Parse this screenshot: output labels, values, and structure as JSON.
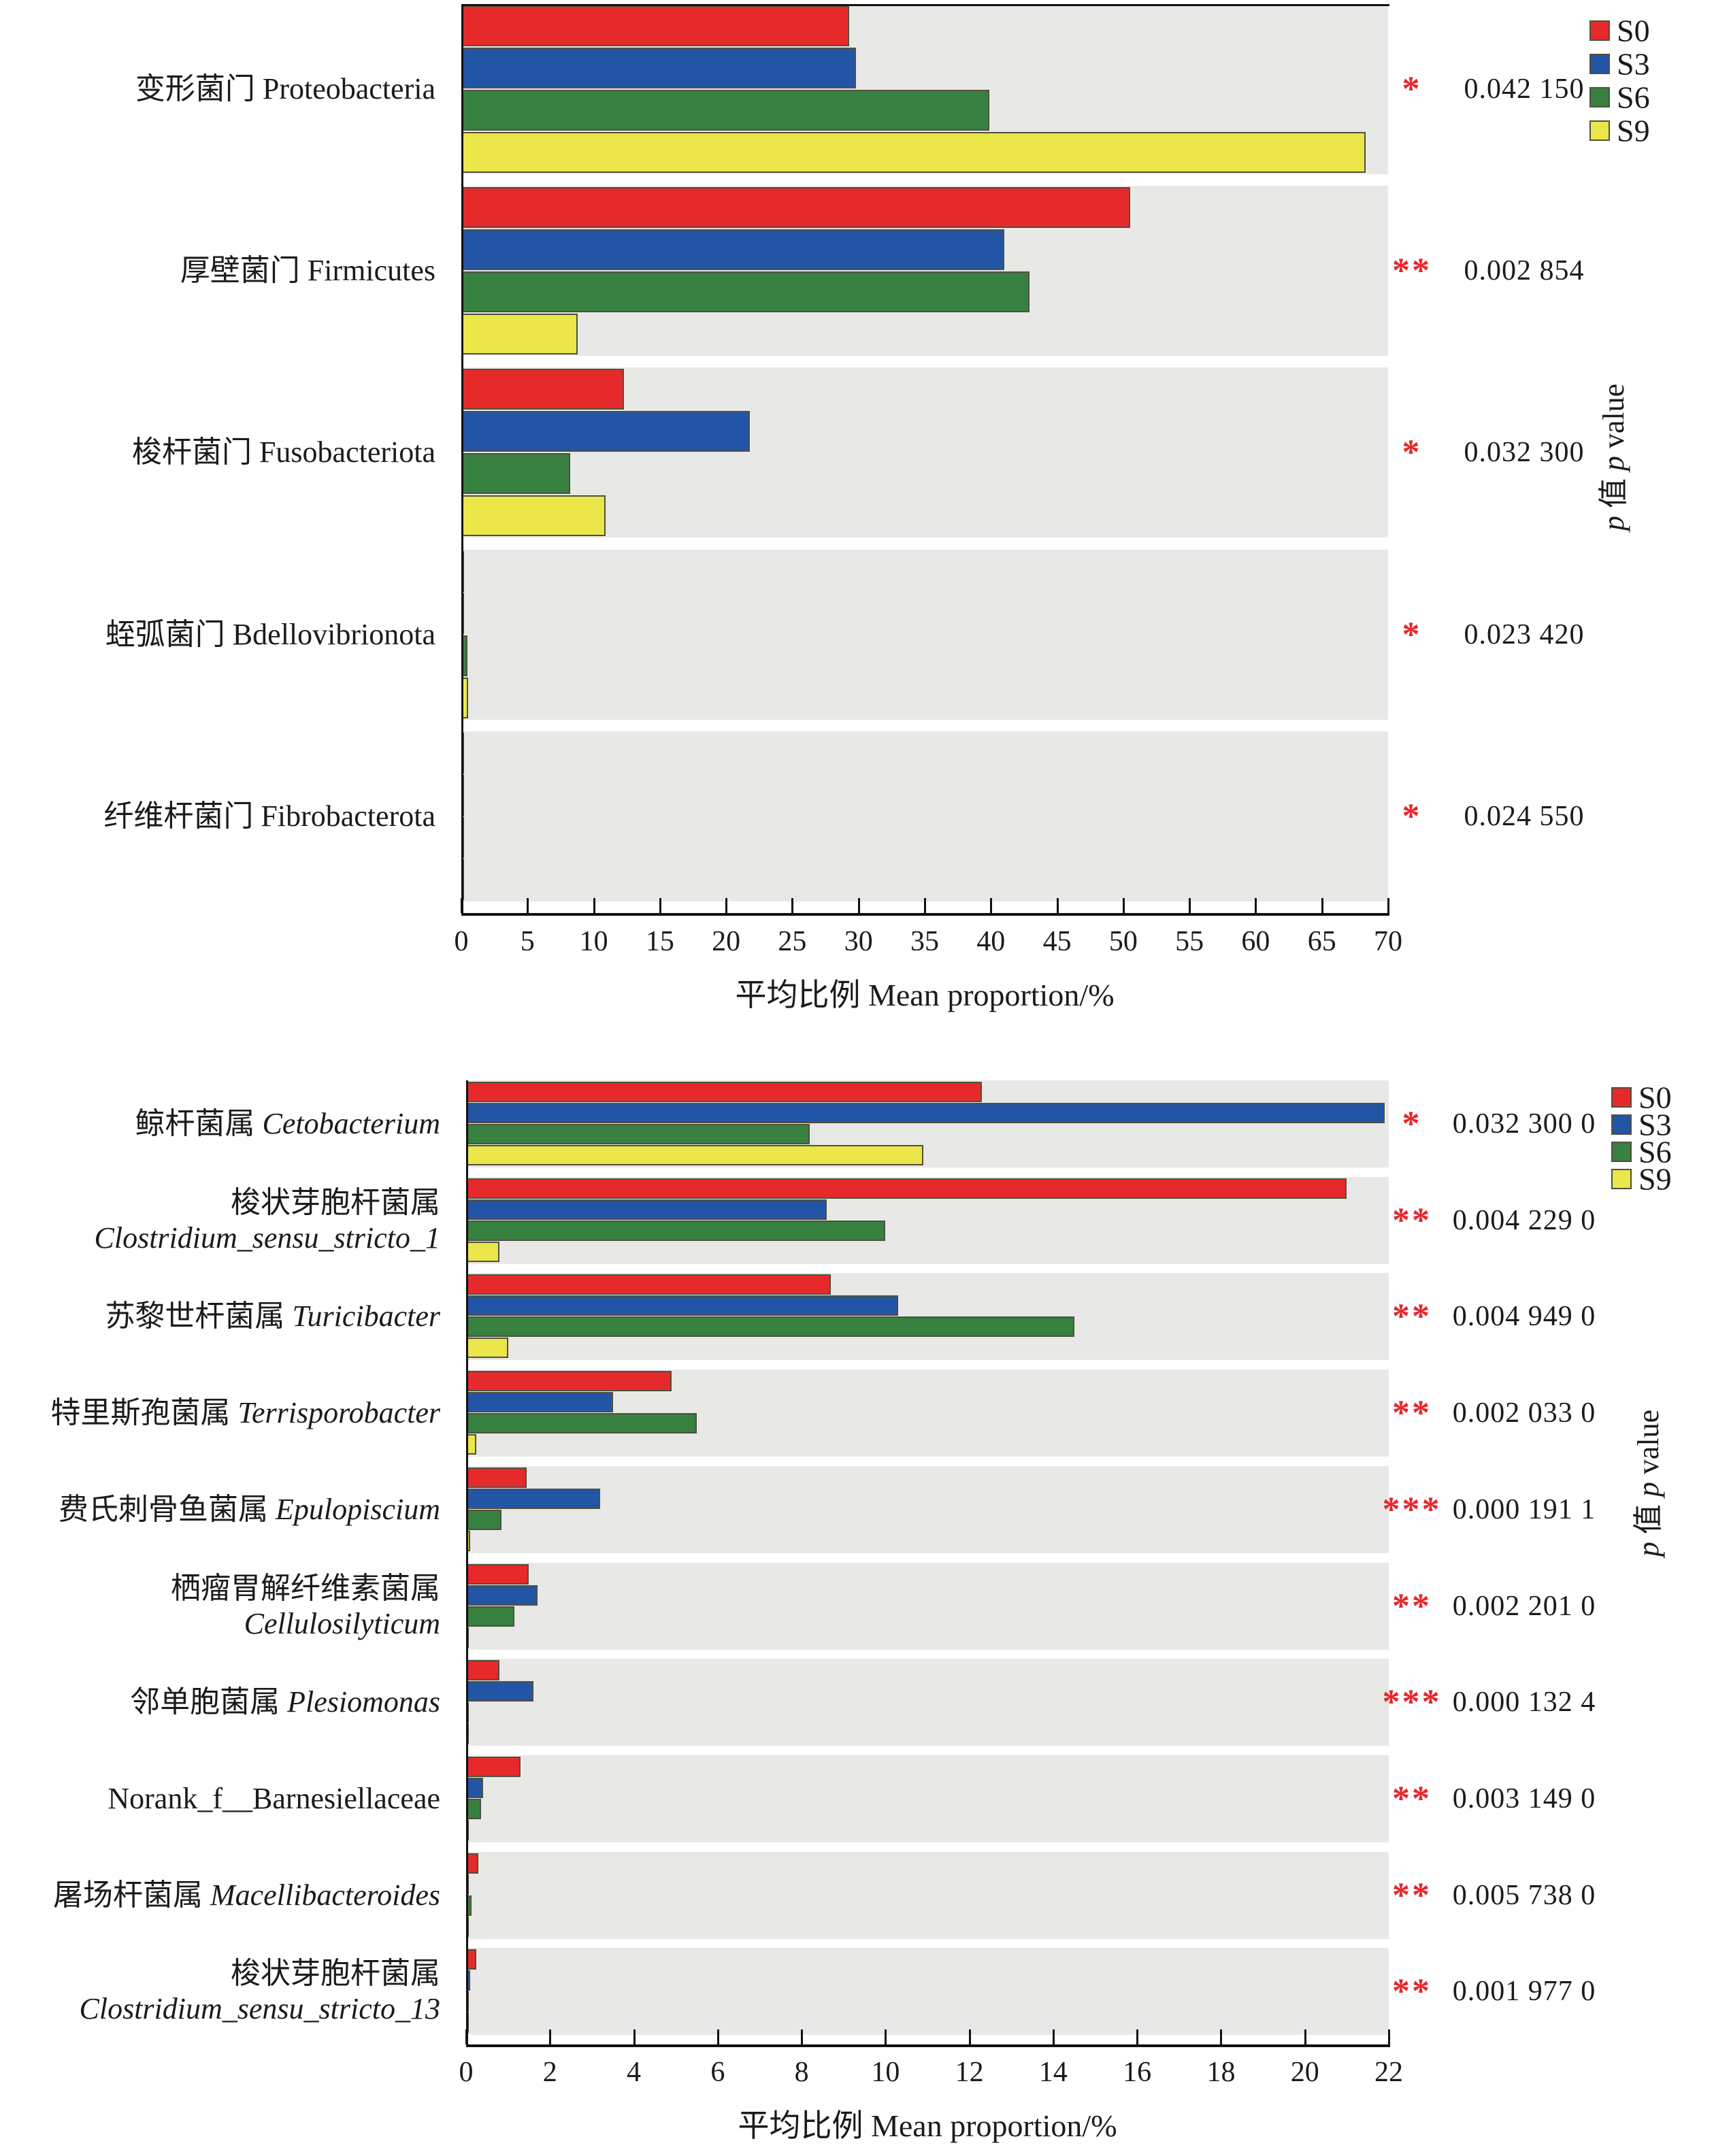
{
  "colors": {
    "S0": "#e62a2c",
    "S3": "#2355a7",
    "S6": "#38803f",
    "S9": "#ebe74b",
    "bar_border": "#50503f",
    "band_bg": "#e8e8e6",
    "star": "#e8262b",
    "text": "#1b1b1b"
  },
  "chart_data": [
    {
      "id": "phylum-chart",
      "type": "bar",
      "orientation": "horizontal-grouped",
      "series": [
        "S0",
        "S3",
        "S6",
        "S9"
      ],
      "legend": [
        "S0",
        "S3",
        "S6",
        "S9"
      ],
      "xlabel": "平均比例 Mean  proportion/%",
      "right_ylabel_segments": [
        {
          "t": "p",
          "i": true
        },
        {
          "t": " 值 ",
          "i": false
        },
        {
          "t": "p",
          "i": true
        },
        {
          "t": " value",
          "i": false
        }
      ],
      "xlim": [
        0,
        70
      ],
      "xticks": [
        0,
        5,
        10,
        15,
        20,
        25,
        30,
        35,
        40,
        45,
        50,
        55,
        60,
        65,
        70
      ],
      "grid": false,
      "categories": [
        {
          "lines": [
            [
              {
                "t": "变形菌门 Proteobacteria",
                "i": false
              }
            ]
          ],
          "values": [
            29.3,
            29.8,
            39.9,
            68.3
          ],
          "p": "0.042 150",
          "stars": "*"
        },
        {
          "lines": [
            [
              {
                "t": "厚壁菌门 Firmicutes",
                "i": false
              }
            ]
          ],
          "values": [
            50.5,
            41.0,
            42.9,
            8.8
          ],
          "p": "0.002 854",
          "stars": "**"
        },
        {
          "lines": [
            [
              {
                "t": "梭杆菌门 Fusobacteriota",
                "i": false
              }
            ]
          ],
          "values": [
            12.3,
            21.8,
            8.2,
            10.9
          ],
          "p": "0.032 300",
          "stars": "*"
        },
        {
          "lines": [
            [
              {
                "t": "蛭弧菌门 Bdellovibrionota",
                "i": false
              }
            ]
          ],
          "values": [
            0.05,
            0.1,
            0.45,
            0.5
          ],
          "p": "0.023 420",
          "stars": "*"
        },
        {
          "lines": [
            [
              {
                "t": "纤维杆菌门 Fibrobacterota",
                "i": false
              }
            ]
          ],
          "values": [
            0.07,
            0.03,
            0.02,
            0.02
          ],
          "p": "0.024 550",
          "stars": "*"
        }
      ]
    },
    {
      "id": "genus-chart",
      "type": "bar",
      "orientation": "horizontal-grouped",
      "series": [
        "S0",
        "S3",
        "S6",
        "S9"
      ],
      "legend": [
        "S0",
        "S3",
        "S6",
        "S9"
      ],
      "xlabel": "平均比例 Mean  proportion/%",
      "right_ylabel_segments": [
        {
          "t": "p",
          "i": true
        },
        {
          "t": " 值 ",
          "i": false
        },
        {
          "t": "p",
          "i": true
        },
        {
          "t": " value",
          "i": false
        }
      ],
      "xlim": [
        0,
        22
      ],
      "xticks": [
        0,
        2,
        4,
        6,
        8,
        10,
        12,
        14,
        16,
        18,
        20,
        22
      ],
      "grid": false,
      "categories": [
        {
          "lines": [
            [
              {
                "t": "鲸杆菌属 ",
                "i": false
              },
              {
                "t": "Cetobacterium",
                "i": true
              }
            ]
          ],
          "values": [
            12.3,
            21.9,
            8.2,
            10.9
          ],
          "p": "0.032 300 0",
          "stars": "*"
        },
        {
          "lines": [
            [
              {
                "t": "梭状芽胞杆菌属",
                "i": false
              }
            ],
            [
              {
                "t": "Clostridium_sensu_stricto_1",
                "i": true
              }
            ]
          ],
          "values": [
            21.0,
            8.6,
            10.0,
            0.8
          ],
          "p": "0.004 229 0",
          "stars": "**"
        },
        {
          "lines": [
            [
              {
                "t": "苏黎世杆菌属 ",
                "i": false
              },
              {
                "t": "Turicibacter",
                "i": true
              }
            ]
          ],
          "values": [
            8.7,
            10.3,
            14.5,
            1.0
          ],
          "p": "0.004 949 0",
          "stars": "**"
        },
        {
          "lines": [
            [
              {
                "t": "特里斯孢菌属 ",
                "i": false
              },
              {
                "t": "Terrisporobacter",
                "i": true
              }
            ]
          ],
          "values": [
            4.9,
            3.5,
            5.5,
            0.25
          ],
          "p": "0.002 033 0",
          "stars": "**"
        },
        {
          "lines": [
            [
              {
                "t": "费氏刺骨鱼菌属 ",
                "i": false
              },
              {
                "t": "Epulopiscium",
                "i": true
              }
            ]
          ],
          "values": [
            1.45,
            3.2,
            0.85,
            0.1
          ],
          "p": "0.000 191 1",
          "stars": "***"
        },
        {
          "lines": [
            [
              {
                "t": "栖瘤胃解纤维素菌属",
                "i": false
              }
            ],
            [
              {
                "t": "Cellulosilyticum",
                "i": true
              }
            ]
          ],
          "values": [
            1.5,
            1.7,
            1.15,
            0.04
          ],
          "p": "0.002 201 0",
          "stars": "**"
        },
        {
          "lines": [
            [
              {
                "t": "邻单胞菌属 ",
                "i": false
              },
              {
                "t": "Plesiomonas",
                "i": true
              }
            ]
          ],
          "values": [
            0.8,
            1.6,
            0.06,
            0.03
          ],
          "p": "0.000 132 4",
          "stars": "***"
        },
        {
          "lines": [
            [
              {
                "t": "Norank_f__Barnesiellaceae",
                "i": false
              }
            ]
          ],
          "values": [
            1.3,
            0.4,
            0.35,
            0.03
          ],
          "p": "0.003 149 0",
          "stars": "**"
        },
        {
          "lines": [
            [
              {
                "t": "屠场杆菌属 ",
                "i": false
              },
              {
                "t": "Macellibacteroides",
                "i": true
              }
            ]
          ],
          "values": [
            0.3,
            0.06,
            0.13,
            0.02
          ],
          "p": "0.005 738 0",
          "stars": "**"
        },
        {
          "lines": [
            [
              {
                "t": "梭状芽胞杆菌属",
                "i": false
              }
            ],
            [
              {
                "t": "Clostridium_sensu_stricto_13",
                "i": true
              }
            ]
          ],
          "values": [
            0.25,
            0.1,
            0.05,
            0.02
          ],
          "p": "0.001 977 0",
          "stars": "**"
        }
      ]
    }
  ]
}
